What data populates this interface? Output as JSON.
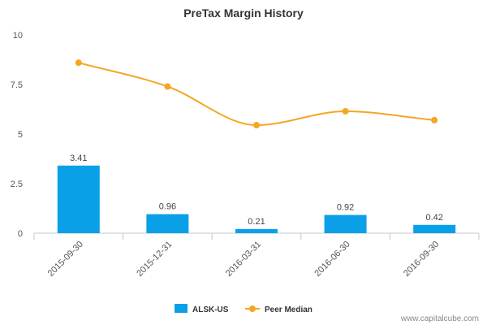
{
  "chart_data": {
    "type": "bar",
    "title": "PreTax Margin History",
    "categories": [
      "2015-09-30",
      "2015-12-31",
      "2016-03-31",
      "2016-06-30",
      "2016-09-30"
    ],
    "series": [
      {
        "name": "ALSK-US",
        "type": "bar",
        "color": "#0aa0e8",
        "values": [
          3.41,
          0.96,
          0.21,
          0.92,
          0.42
        ]
      },
      {
        "name": "Peer Median",
        "type": "line",
        "color": "#f5a623",
        "values": [
          8.6,
          7.4,
          5.45,
          6.15,
          5.7
        ]
      }
    ],
    "data_labels": [
      "3.41",
      "0.96",
      "0.21",
      "0.92",
      "0.42"
    ],
    "y_ticks": [
      "0",
      "2.5",
      "5",
      "7.5",
      "10"
    ],
    "ylim": [
      0,
      10
    ],
    "xlabel": "",
    "ylabel": "",
    "grid": false,
    "legend_position": "bottom"
  },
  "watermark": "www.capitalcube.com"
}
